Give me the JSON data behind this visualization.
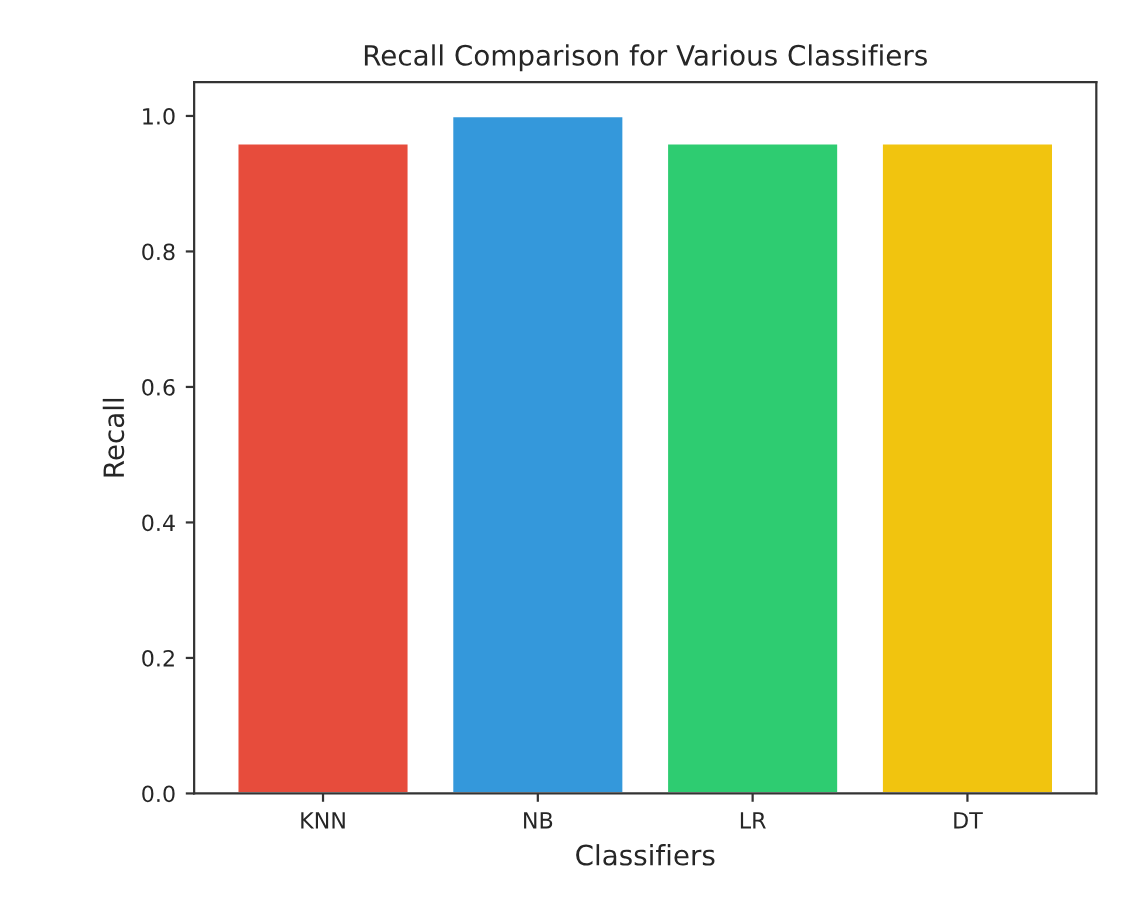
{
  "chart_data": {
    "type": "bar",
    "title": "Recall Comparison for Various Classifiers",
    "xlabel": "Classifiers",
    "ylabel": "Recall",
    "categories": [
      "KNN",
      "NB",
      "LR",
      "DT"
    ],
    "values": [
      0.96,
      1.0,
      0.96,
      0.96
    ],
    "colors": [
      "#e74c3c",
      "#3498db",
      "#2ecc71",
      "#f1c40f"
    ],
    "ylim": [
      0,
      1.05
    ],
    "yticks": [
      {
        "value": 0,
        "label": "0.0"
      },
      {
        "value": 0.2,
        "label": "0.2"
      },
      {
        "value": 0.4,
        "label": "0.4"
      },
      {
        "value": 0.6,
        "label": "0.6"
      },
      {
        "value": 0.8,
        "label": "0.8"
      },
      {
        "value": 1.0,
        "label": "1.0"
      }
    ],
    "grid": false,
    "legend": false
  }
}
